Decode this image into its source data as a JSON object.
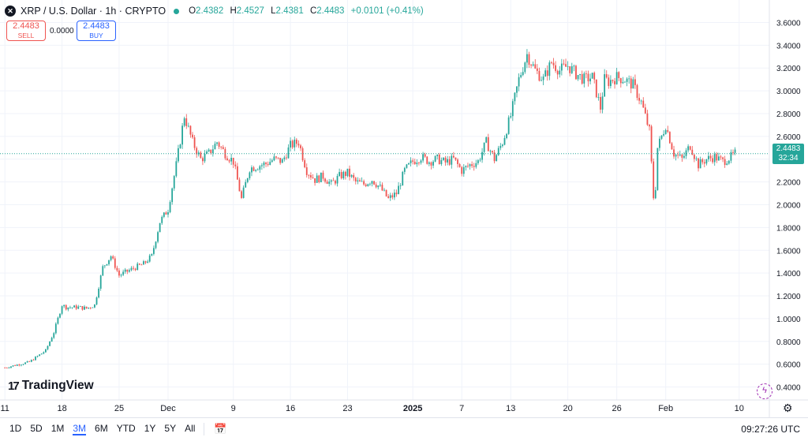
{
  "header": {
    "title": "XRP / U.S. Dollar · 1h · CRYPTO",
    "ohlc": [
      {
        "label": "O",
        "value": "2.4382"
      },
      {
        "label": "H",
        "value": "2.4527"
      },
      {
        "label": "L",
        "value": "2.4381"
      },
      {
        "label": "C",
        "value": "2.4483"
      }
    ],
    "change": "+0.0101 (+0.41%)"
  },
  "trade": {
    "sell_price": "2.4483",
    "sell_label": "SELL",
    "spread": "0.0000",
    "buy_price": "2.4483",
    "buy_label": "BUY"
  },
  "brand": {
    "logo": "TradingView"
  },
  "last_price": {
    "price": "2.4483",
    "countdown": "32:34"
  },
  "ranges": [
    "1D",
    "5D",
    "1M",
    "3M",
    "6M",
    "YTD",
    "1Y",
    "5Y",
    "All"
  ],
  "active_range": "3M",
  "clock": "09:27:26 UTC",
  "colors": {
    "up": "#26a69a",
    "down": "#ef5350",
    "accent": "#2962ff"
  },
  "icons": {
    "settings": "gear-icon",
    "date_range": "calendar-icon",
    "symbol": "xrp-logo-icon"
  },
  "chart_data": {
    "type": "candlestick",
    "ylim": [
      0.3,
      3.7
    ],
    "y_ticks": [
      "0.4000",
      "0.6000",
      "0.8000",
      "1.0000",
      "1.2000",
      "1.4000",
      "1.6000",
      "1.8000",
      "2.0000",
      "2.2000",
      "2.4000",
      "2.6000",
      "2.8000",
      "3.0000",
      "3.2000",
      "3.4000",
      "3.6000"
    ],
    "x_ticks": [
      {
        "label": "11",
        "d": 0
      },
      {
        "label": "18",
        "d": 7
      },
      {
        "label": "25",
        "d": 14
      },
      {
        "label": "Dec",
        "d": 20
      },
      {
        "label": "9",
        "d": 28
      },
      {
        "label": "16",
        "d": 35
      },
      {
        "label": "23",
        "d": 42
      },
      {
        "label": "2025",
        "d": 50,
        "bold": true
      },
      {
        "label": "7",
        "d": 56
      },
      {
        "label": "13",
        "d": 62
      },
      {
        "label": "20",
        "d": 69
      },
      {
        "label": "26",
        "d": 75
      },
      {
        "label": "Feb",
        "d": 81
      },
      {
        "label": "10",
        "d": 90
      }
    ],
    "x_range_days": [
      -0.6,
      93.7
    ],
    "last_price": 2.4483,
    "path_days_close": [
      [
        0,
        0.57
      ],
      [
        3,
        0.62
      ],
      [
        5,
        0.72
      ],
      [
        6,
        0.88
      ],
      [
        7,
        1.12
      ],
      [
        7.5,
        1.1
      ],
      [
        9,
        1.1
      ],
      [
        10,
        1.09
      ],
      [
        11,
        1.12
      ],
      [
        12,
        1.45
      ],
      [
        13,
        1.55
      ],
      [
        14,
        1.38
      ],
      [
        16,
        1.45
      ],
      [
        17,
        1.48
      ],
      [
        18,
        1.55
      ],
      [
        19,
        1.85
      ],
      [
        20,
        1.96
      ],
      [
        21,
        2.35
      ],
      [
        22,
        2.78
      ],
      [
        23,
        2.55
      ],
      [
        24,
        2.4
      ],
      [
        25,
        2.45
      ],
      [
        26,
        2.55
      ],
      [
        27,
        2.45
      ],
      [
        28,
        2.38
      ],
      [
        29,
        2.05
      ],
      [
        30,
        2.32
      ],
      [
        32,
        2.36
      ],
      [
        33,
        2.4
      ],
      [
        34,
        2.38
      ],
      [
        35,
        2.52
      ],
      [
        36,
        2.55
      ],
      [
        37,
        2.3
      ],
      [
        38,
        2.22
      ],
      [
        39,
        2.25
      ],
      [
        40,
        2.18
      ],
      [
        41,
        2.25
      ],
      [
        42,
        2.28
      ],
      [
        43,
        2.2
      ],
      [
        44,
        2.18
      ],
      [
        45,
        2.22
      ],
      [
        46,
        2.15
      ],
      [
        47,
        2.05
      ],
      [
        48,
        2.1
      ],
      [
        49,
        2.3
      ],
      [
        50,
        2.38
      ],
      [
        51,
        2.42
      ],
      [
        52,
        2.38
      ],
      [
        53,
        2.4
      ],
      [
        54,
        2.37
      ],
      [
        55,
        2.4
      ],
      [
        56,
        2.3
      ],
      [
        57,
        2.35
      ],
      [
        58,
        2.38
      ],
      [
        59,
        2.55
      ],
      [
        60,
        2.4
      ],
      [
        61,
        2.55
      ],
      [
        62,
        2.78
      ],
      [
        63,
        3.1
      ],
      [
        64,
        3.32
      ],
      [
        65,
        3.18
      ],
      [
        66,
        3.1
      ],
      [
        67,
        3.25
      ],
      [
        68,
        3.18
      ],
      [
        69,
        3.22
      ],
      [
        70,
        3.15
      ],
      [
        71,
        3.1
      ],
      [
        72,
        3.12
      ],
      [
        73,
        2.85
      ],
      [
        73.5,
        3.1
      ],
      [
        74,
        3.08
      ],
      [
        75,
        3.12
      ],
      [
        76,
        3.1
      ],
      [
        77,
        3.05
      ],
      [
        78,
        2.9
      ],
      [
        79,
        2.65
      ],
      [
        79.6,
        1.95
      ],
      [
        80,
        2.5
      ],
      [
        81,
        2.7
      ],
      [
        82,
        2.45
      ],
      [
        83,
        2.4
      ],
      [
        84,
        2.52
      ],
      [
        85,
        2.35
      ],
      [
        86,
        2.4
      ],
      [
        87,
        2.42
      ],
      [
        88,
        2.38
      ],
      [
        89,
        2.42
      ],
      [
        89.5,
        2.448
      ]
    ]
  }
}
